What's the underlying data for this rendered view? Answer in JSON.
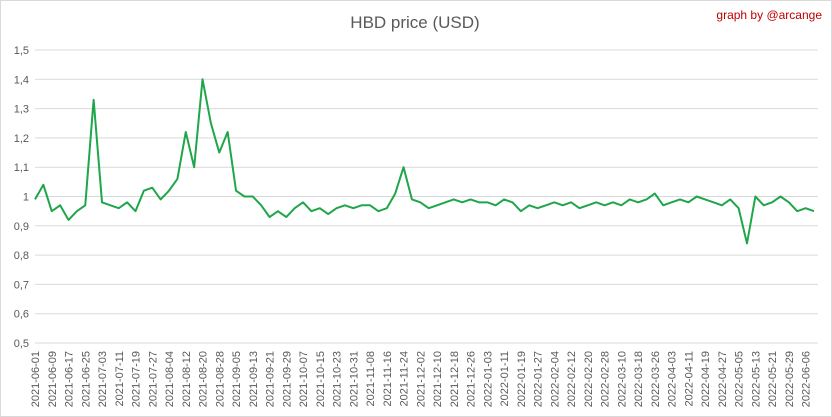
{
  "chart_data": {
    "type": "line",
    "title": "HBD price (USD)",
    "credit": "graph by @arcange",
    "categories": [
      "2021-06-01",
      null,
      "2021-06-09",
      null,
      "2021-06-17",
      null,
      "2021-06-25",
      null,
      "2021-07-03",
      null,
      "2021-07-11",
      null,
      "2021-07-19",
      null,
      "2021-07-27",
      null,
      "2021-08-04",
      null,
      "2021-08-12",
      null,
      "2021-08-20",
      null,
      "2021-08-28",
      null,
      "2021-09-05",
      null,
      "2021-09-13",
      null,
      "2021-09-21",
      null,
      "2021-09-29",
      null,
      "2021-10-07",
      null,
      "2021-10-15",
      null,
      "2021-10-23",
      null,
      "2021-10-31",
      null,
      "2021-11-08",
      null,
      "2021-11-16",
      null,
      "2021-11-24",
      null,
      "2021-12-02",
      null,
      "2021-12-10",
      null,
      "2021-12-18",
      null,
      "2021-12-26",
      null,
      "2022-01-03",
      null,
      "2022-01-11",
      null,
      "2022-01-19",
      null,
      "2022-01-27",
      null,
      "2022-02-04",
      null,
      "2022-02-12",
      null,
      "2022-02-20",
      null,
      "2022-02-28",
      null,
      "2022-03-10",
      null,
      "2022-03-18",
      null,
      "2022-03-26",
      null,
      "2022-04-03",
      null,
      "2022-04-11",
      null,
      "2022-04-19",
      null,
      "2022-04-27",
      null,
      "2022-05-05",
      null,
      "2022-05-13",
      null,
      "2022-05-21",
      null,
      "2022-05-29",
      null,
      "2022-06-06",
      null
    ],
    "series": [
      {
        "name": "HBD price (USD)",
        "color": "#1fa64a",
        "values": [
          0.99,
          1.04,
          0.95,
          0.97,
          0.92,
          0.95,
          0.97,
          1.33,
          0.98,
          0.97,
          0.96,
          0.98,
          0.95,
          1.02,
          1.03,
          0.99,
          1.02,
          1.06,
          1.22,
          1.1,
          1.4,
          1.25,
          1.15,
          1.22,
          1.02,
          1.0,
          1.0,
          0.97,
          0.93,
          0.95,
          0.93,
          0.96,
          0.98,
          0.95,
          0.96,
          0.94,
          0.96,
          0.97,
          0.96,
          0.97,
          0.97,
          0.95,
          0.96,
          1.01,
          1.1,
          0.99,
          0.98,
          0.96,
          0.97,
          0.98,
          0.99,
          0.98,
          0.99,
          0.98,
          0.98,
          0.97,
          0.99,
          0.98,
          0.95,
          0.97,
          0.96,
          0.97,
          0.98,
          0.97,
          0.98,
          0.96,
          0.97,
          0.98,
          0.97,
          0.98,
          0.97,
          0.99,
          0.98,
          0.99,
          1.01,
          0.97,
          0.98,
          0.99,
          0.98,
          1.0,
          0.99,
          0.98,
          0.97,
          0.99,
          0.96,
          0.84,
          1.0,
          0.97,
          0.98,
          1.0,
          0.98,
          0.95,
          0.96,
          0.95
        ]
      }
    ],
    "ylim": [
      0.5,
      1.5
    ],
    "yticks": [
      {
        "value": 0.5,
        "label": "0,5"
      },
      {
        "value": 0.6,
        "label": "0,6"
      },
      {
        "value": 0.7,
        "label": "0,7"
      },
      {
        "value": 0.8,
        "label": "0,8"
      },
      {
        "value": 0.9,
        "label": "0,9"
      },
      1,
      {
        "value": 1.1,
        "label": "1,1"
      },
      {
        "value": 1.2,
        "label": "1,2"
      },
      {
        "value": 1.3,
        "label": "1,3"
      },
      {
        "value": 1.4,
        "label": "1,4"
      },
      {
        "value": 1.5,
        "label": "1,5"
      }
    ],
    "grid": true
  }
}
